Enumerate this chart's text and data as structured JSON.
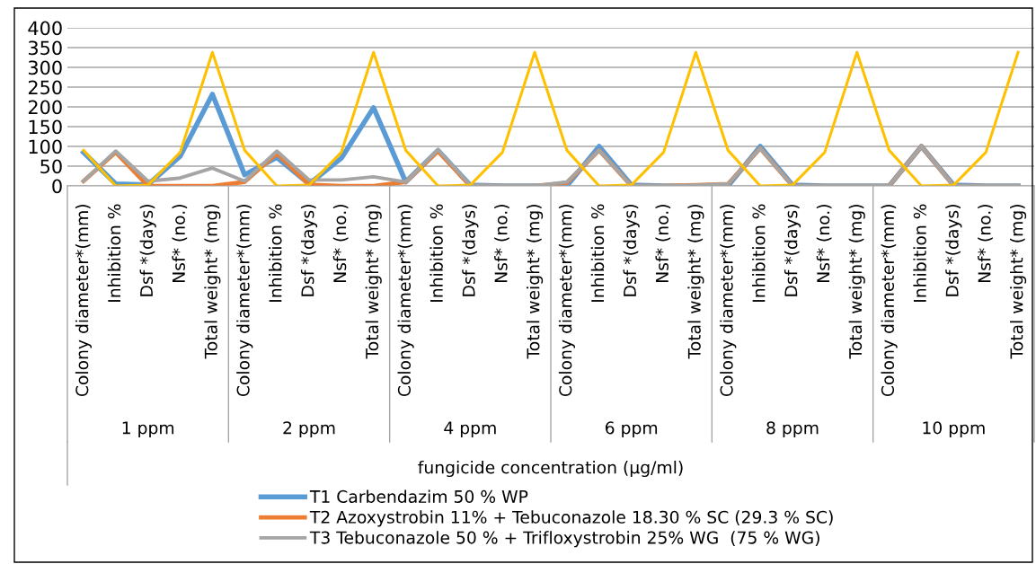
{
  "chart_data": {
    "type": "line",
    "xlabel": "fungicide concentration (µg/ml)",
    "categories": [
      "Colony diameter*(mm)",
      "Inhibition %",
      "Dsf *(days)",
      "Nsf* (no.)",
      "Total weight* (mg)",
      "Colony diameter*(mm)",
      "Inhibition %",
      "Dsf *(days)",
      "Nsf* (no.)",
      "Total weight* (mg)",
      "Colony diameter*(mm)",
      "Inhibition %",
      "Dsf *(days)",
      "Nsf* (no.)",
      "Total weight* (mg)",
      "Colony diameter*(mm)",
      "Inhibition %",
      "Dsf *(days)",
      "Nsf* (no.)",
      "Total weight* (mg)",
      "Colony diameter*(mm)",
      "Inhibition %",
      "Dsf *(days)",
      "Nsf* (no.)",
      "Total weight* (mg)",
      "Colony diameter*(mm)",
      "Inhibition %",
      "Dsf *(days)",
      "Nsf* (no.)",
      "Total weight* (mg)"
    ],
    "annotations": [
      "1 ppm",
      "2 ppm",
      "4 ppm",
      "6 ppm",
      "8 ppm",
      "10 ppm"
    ],
    "series": [
      {
        "name": "T1 Carbendazim 50 % WP",
        "color": "#5b9bd5",
        "values": [
          85,
          5,
          3,
          75,
          232,
          28,
          72,
          5,
          70,
          198,
          10,
          90,
          2,
          0,
          0,
          0,
          100,
          2,
          0,
          0,
          0,
          100,
          2,
          0,
          0,
          0,
          100,
          2,
          0,
          0
        ]
      },
      {
        "name": "T2 Azoxystrobin 11% + Tebuconazole 18.30 % SC (29.3 % SC)",
        "color": "#ed7d31",
        "values": [
          12,
          85,
          0,
          0,
          0,
          10,
          82,
          3,
          0,
          0,
          10,
          88,
          0,
          0,
          0,
          8,
          90,
          0,
          0,
          2,
          5,
          95,
          0,
          0,
          0,
          0,
          100,
          0,
          0,
          0
        ]
      },
      {
        "name": "T3 Tebuconazole 50 % + Trifloxystrobin 25% WG  (75 % WG)",
        "color": "#a5a5a5",
        "values": [
          12,
          88,
          12,
          20,
          45,
          12,
          88,
          15,
          15,
          23,
          10,
          92,
          2,
          0,
          0,
          10,
          90,
          0,
          0,
          2,
          5,
          95,
          0,
          0,
          0,
          0,
          100,
          0,
          0,
          0
        ]
      },
      {
        "color": "#ffc000",
        "values": [
          90,
          0,
          2,
          85,
          338,
          90,
          0,
          2,
          85,
          338,
          90,
          0,
          2,
          85,
          338,
          90,
          0,
          2,
          85,
          338,
          90,
          0,
          2,
          85,
          338,
          90,
          0,
          2,
          85,
          338
        ]
      }
    ],
    "ylim": [
      0,
      400
    ],
    "yticks": [
      0,
      50,
      100,
      150,
      200,
      250,
      300,
      350,
      400
    ],
    "grid": "y",
    "legend": "bottom",
    "marker": "none",
    "line_style": "solid"
  }
}
